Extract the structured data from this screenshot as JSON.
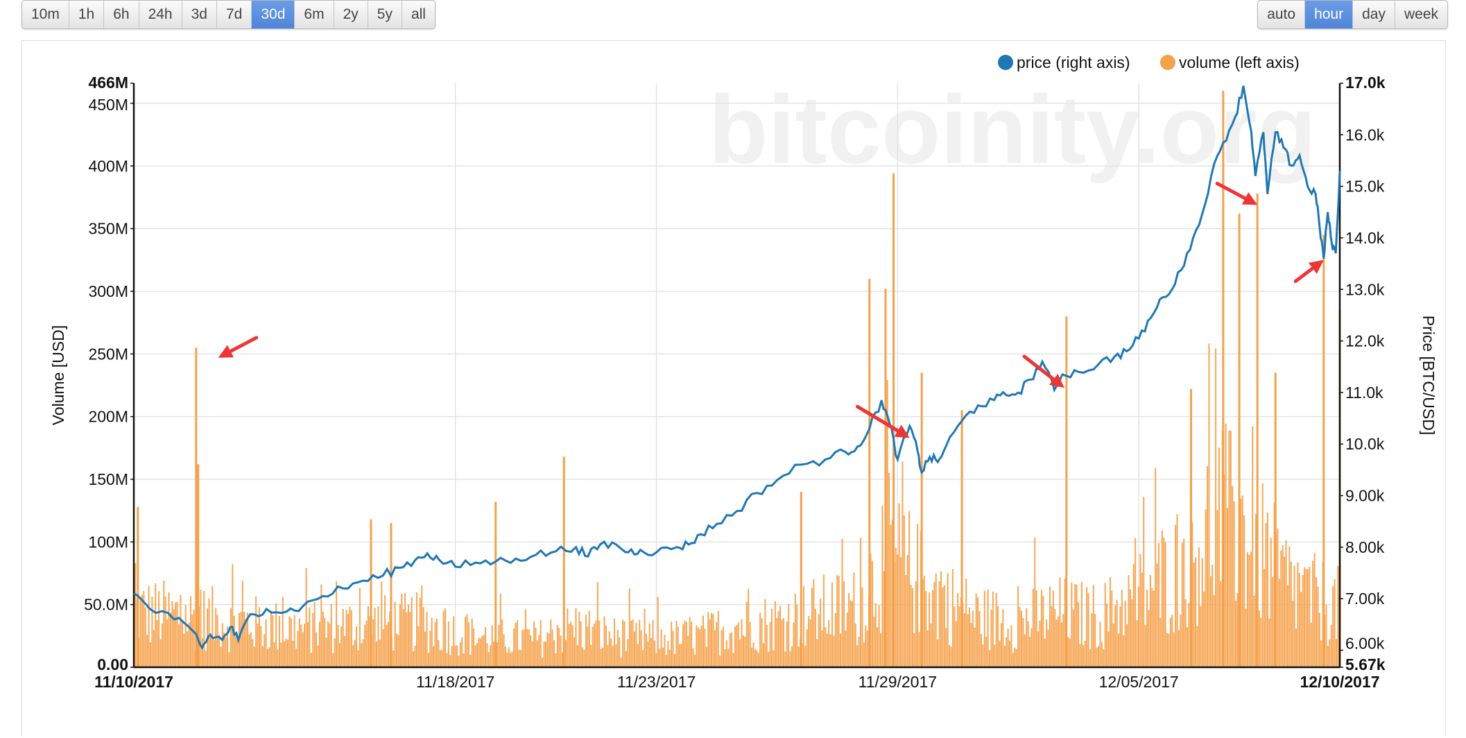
{
  "range_buttons": [
    {
      "label": "10m",
      "active": false
    },
    {
      "label": "1h",
      "active": false
    },
    {
      "label": "6h",
      "active": false
    },
    {
      "label": "24h",
      "active": false
    },
    {
      "label": "3d",
      "active": false
    },
    {
      "label": "7d",
      "active": false
    },
    {
      "label": "30d",
      "active": true
    },
    {
      "label": "6m",
      "active": false
    },
    {
      "label": "2y",
      "active": false
    },
    {
      "label": "5y",
      "active": false
    },
    {
      "label": "all",
      "active": false
    }
  ],
  "resolution_buttons": [
    {
      "label": "auto",
      "active": false
    },
    {
      "label": "hour",
      "active": true
    },
    {
      "label": "day",
      "active": false
    },
    {
      "label": "week",
      "active": false
    }
  ],
  "watermark": "bitcoinity.org",
  "colors": {
    "price": "#1f77b4",
    "volume": "#f5a14a",
    "arrow": "#ee3535",
    "active_button": "#5289dc"
  },
  "chart_data": {
    "type": "bar+line",
    "legend": [
      {
        "label": "price (right axis)",
        "color": "#1f77b4"
      },
      {
        "label": "volume (left axis)",
        "color": "#f5a14a"
      }
    ],
    "legend_position": "top-right",
    "ylabel_left": "Volume [USD]",
    "ylabel_right": "Price [BTC/USD]",
    "left_axis": {
      "min": 0,
      "max": 466,
      "ticks": [
        {
          "v": 0,
          "label": "0.00",
          "bold": true
        },
        {
          "v": 50,
          "label": "50.0M",
          "bold": false
        },
        {
          "v": 100,
          "label": "100M",
          "bold": false
        },
        {
          "v": 150,
          "label": "150M",
          "bold": false
        },
        {
          "v": 200,
          "label": "200M",
          "bold": false
        },
        {
          "v": 250,
          "label": "250M",
          "bold": false
        },
        {
          "v": 300,
          "label": "300M",
          "bold": false
        },
        {
          "v": 350,
          "label": "350M",
          "bold": false
        },
        {
          "v": 400,
          "label": "400M",
          "bold": false
        },
        {
          "v": 450,
          "label": "450M",
          "bold": false
        },
        {
          "v": 466,
          "label": "466M",
          "bold": true
        }
      ]
    },
    "right_axis": {
      "min": 5.67,
      "max": 17.0,
      "ticks": [
        {
          "v": 5.67,
          "label": "5.67k",
          "bold": true
        },
        {
          "v": 6,
          "label": "6.00k",
          "bold": false
        },
        {
          "v": 7,
          "label": "7.00k",
          "bold": false
        },
        {
          "v": 8,
          "label": "8.00k",
          "bold": false
        },
        {
          "v": 9,
          "label": "9.00k",
          "bold": false
        },
        {
          "v": 10,
          "label": "10.0k",
          "bold": false
        },
        {
          "v": 11,
          "label": "11.0k",
          "bold": false
        },
        {
          "v": 12,
          "label": "12.0k",
          "bold": false
        },
        {
          "v": 13,
          "label": "13.0k",
          "bold": false
        },
        {
          "v": 14,
          "label": "14.0k",
          "bold": false
        },
        {
          "v": 15,
          "label": "15.0k",
          "bold": false
        },
        {
          "v": 16,
          "label": "16.0k",
          "bold": false
        },
        {
          "v": 17,
          "label": "17.0k",
          "bold": true
        }
      ]
    },
    "x_axis": {
      "min": 0,
      "max": 30,
      "ticks": [
        {
          "day": 0,
          "label": "11/10/2017",
          "bold": true
        },
        {
          "day": 8,
          "label": "11/18/2017",
          "bold": false
        },
        {
          "day": 13,
          "label": "11/23/2017",
          "bold": false
        },
        {
          "day": 19,
          "label": "11/29/2017",
          "bold": false
        },
        {
          "day": 25,
          "label": "12/05/2017",
          "bold": false
        },
        {
          "day": 30,
          "label": "12/10/2017",
          "bold": true
        }
      ]
    },
    "grid": true,
    "price_series": [
      [
        0,
        7.1
      ],
      [
        0.4,
        6.8
      ],
      [
        1.0,
        6.6
      ],
      [
        1.5,
        6.35
      ],
      [
        1.7,
        6.05
      ],
      [
        1.9,
        6.3
      ],
      [
        2.2,
        6.2
      ],
      [
        2.4,
        6.45
      ],
      [
        2.6,
        6.2
      ],
      [
        2.9,
        6.7
      ],
      [
        3.3,
        6.8
      ],
      [
        3.8,
        6.75
      ],
      [
        4.2,
        6.85
      ],
      [
        4.7,
        7.05
      ],
      [
        5.2,
        7.2
      ],
      [
        5.7,
        7.35
      ],
      [
        6.2,
        7.45
      ],
      [
        6.6,
        7.6
      ],
      [
        7.0,
        7.75
      ],
      [
        7.3,
        7.88
      ],
      [
        7.6,
        7.75
      ],
      [
        8.0,
        7.62
      ],
      [
        8.5,
        7.7
      ],
      [
        9.0,
        7.72
      ],
      [
        9.5,
        7.78
      ],
      [
        10.0,
        7.85
      ],
      [
        10.5,
        7.92
      ],
      [
        11.0,
        8.0
      ],
      [
        11.3,
        7.82
      ],
      [
        11.6,
        8.05
      ],
      [
        12.0,
        8.05
      ],
      [
        12.3,
        7.9
      ],
      [
        12.6,
        7.95
      ],
      [
        13.0,
        7.9
      ],
      [
        13.5,
        8.0
      ],
      [
        13.8,
        8.05
      ],
      [
        14.1,
        8.25
      ],
      [
        14.5,
        8.45
      ],
      [
        15.0,
        8.7
      ],
      [
        15.5,
        9.05
      ],
      [
        16.0,
        9.3
      ],
      [
        16.6,
        9.6
      ],
      [
        17.2,
        9.7
      ],
      [
        17.7,
        9.85
      ],
      [
        18.0,
        9.95
      ],
      [
        18.3,
        10.3
      ],
      [
        18.6,
        10.85
      ],
      [
        18.8,
        10.4
      ],
      [
        19.0,
        9.7
      ],
      [
        19.3,
        10.35
      ],
      [
        19.5,
        9.85
      ],
      [
        19.6,
        9.45
      ],
      [
        19.8,
        9.75
      ],
      [
        20.0,
        9.65
      ],
      [
        20.2,
        9.95
      ],
      [
        20.6,
        10.45
      ],
      [
        21.0,
        10.75
      ],
      [
        21.4,
        10.85
      ],
      [
        21.7,
        10.95
      ],
      [
        22.0,
        11.0
      ],
      [
        22.3,
        11.25
      ],
      [
        22.6,
        11.6
      ],
      [
        22.9,
        11.05
      ],
      [
        23.1,
        11.35
      ],
      [
        23.5,
        11.4
      ],
      [
        24.0,
        11.55
      ],
      [
        24.4,
        11.7
      ],
      [
        24.7,
        11.8
      ],
      [
        25.0,
        12.05
      ],
      [
        25.3,
        12.45
      ],
      [
        25.6,
        12.85
      ],
      [
        25.9,
        13.1
      ],
      [
        26.2,
        13.7
      ],
      [
        26.5,
        14.25
      ],
      [
        26.8,
        15.2
      ],
      [
        27.1,
        15.85
      ],
      [
        27.4,
        16.35
      ],
      [
        27.6,
        16.95
      ],
      [
        27.8,
        16.05
      ],
      [
        27.9,
        15.2
      ],
      [
        28.1,
        16.05
      ],
      [
        28.2,
        14.85
      ],
      [
        28.4,
        16.05
      ],
      [
        28.6,
        15.75
      ],
      [
        28.8,
        15.4
      ],
      [
        29.0,
        15.6
      ],
      [
        29.2,
        15.0
      ],
      [
        29.4,
        14.85
      ],
      [
        29.5,
        14.2
      ],
      [
        29.6,
        13.6
      ],
      [
        29.7,
        14.5
      ],
      [
        29.8,
        13.9
      ],
      [
        29.9,
        13.7
      ],
      [
        30.0,
        15.3
      ]
    ],
    "volume_spikes": [
      {
        "day": 0.1,
        "v": 128
      },
      {
        "day": 1.55,
        "v": 255
      },
      {
        "day": 1.6,
        "v": 162
      },
      {
        "day": 5.9,
        "v": 118
      },
      {
        "day": 6.4,
        "v": 115
      },
      {
        "day": 9.0,
        "v": 132
      },
      {
        "day": 10.7,
        "v": 168
      },
      {
        "day": 16.6,
        "v": 140
      },
      {
        "day": 18.3,
        "v": 310
      },
      {
        "day": 18.7,
        "v": 302
      },
      {
        "day": 18.9,
        "v": 394
      },
      {
        "day": 19.6,
        "v": 235
      },
      {
        "day": 20.6,
        "v": 205
      },
      {
        "day": 23.2,
        "v": 280
      },
      {
        "day": 26.3,
        "v": 222
      },
      {
        "day": 27.1,
        "v": 460
      },
      {
        "day": 27.5,
        "v": 362
      },
      {
        "day": 27.95,
        "v": 378
      },
      {
        "day": 28.4,
        "v": 235
      },
      {
        "day": 29.6,
        "v": 345
      },
      {
        "day": 30.0,
        "v": 285
      }
    ],
    "volume_baseline": [
      [
        0,
        55
      ],
      [
        2,
        48
      ],
      [
        4,
        38
      ],
      [
        5.5,
        42
      ],
      [
        7,
        45
      ],
      [
        8.5,
        30
      ],
      [
        10,
        28
      ],
      [
        11,
        40
      ],
      [
        12,
        30
      ],
      [
        13,
        28
      ],
      [
        14,
        30
      ],
      [
        15,
        42
      ],
      [
        16,
        45
      ],
      [
        17,
        55
      ],
      [
        18,
        60
      ],
      [
        18.7,
        110
      ],
      [
        19.3,
        95
      ],
      [
        20,
        70
      ],
      [
        21,
        50
      ],
      [
        22,
        45
      ],
      [
        23,
        55
      ],
      [
        24,
        50
      ],
      [
        25,
        70
      ],
      [
        26,
        100
      ],
      [
        27,
        150
      ],
      [
        27.8,
        130
      ],
      [
        28.5,
        90
      ],
      [
        29.2,
        70
      ],
      [
        30,
        60
      ]
    ],
    "annotation_arrows": [
      {
        "tail": {
          "day": 3.05,
          "v": 263
        },
        "head": {
          "day": 2.1,
          "v": 247
        }
      },
      {
        "tail": {
          "day": 18.0,
          "v": 208
        },
        "head": {
          "day": 19.3,
          "v": 183
        }
      },
      {
        "tail": {
          "day": 22.15,
          "v": 248
        },
        "head": {
          "day": 23.15,
          "v": 223
        }
      },
      {
        "tail": {
          "day": 26.95,
          "v": 386
        },
        "head": {
          "day": 27.95,
          "v": 369
        }
      },
      {
        "tail": {
          "day": 28.9,
          "v": 308
        },
        "head": {
          "day": 29.6,
          "v": 325
        }
      }
    ]
  }
}
